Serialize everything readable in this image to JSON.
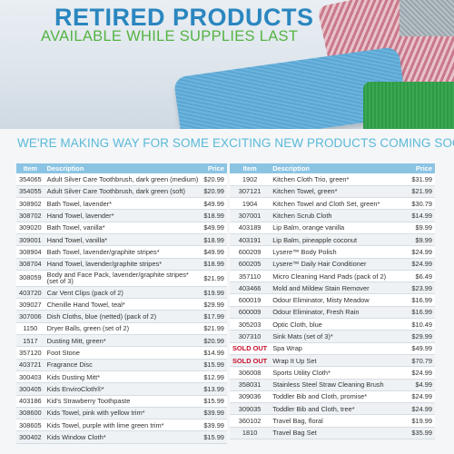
{
  "banner": {
    "title": "RETIRED PRODUCTS",
    "subtitle": "AVAILABLE WHILE SUPPLIES LAST"
  },
  "headline": "WE'RE MAKING WAY FOR SOME EXCITING NEW PRODUCTS COMING SOON!",
  "columns": {
    "item": "Item",
    "description": "Description",
    "price": "Price"
  },
  "left_products": [
    {
      "item": "354065",
      "description": "Adult Silver Care Toothbrush, dark green (medium)",
      "price": "$20.99"
    },
    {
      "item": "354055",
      "description": "Adult Silver Care Toothbrush, dark green (soft)",
      "price": "$20.99"
    },
    {
      "item": "308902",
      "description": "Bath Towel, lavender*",
      "price": "$49.99"
    },
    {
      "item": "308702",
      "description": "Hand Towel, lavender*",
      "price": "$18.99"
    },
    {
      "item": "309020",
      "description": "Bath Towel, vanilla*",
      "price": "$49.99"
    },
    {
      "item": "309001",
      "description": "Hand Towel, vanilla*",
      "price": "$18.99"
    },
    {
      "item": "308904",
      "description": "Bath Towel, lavender/graphite stripes*",
      "price": "$49.99"
    },
    {
      "item": "308704",
      "description": "Hand Towel, lavender/graphite stripes*",
      "price": "$18.99"
    },
    {
      "item": "308059",
      "description": "Body and Face Pack, lavender/graphite stripes* (set of 3)",
      "price": "$21.99"
    },
    {
      "item": "403720",
      "description": "Car Vent Clips (pack of 2)",
      "price": "$19.99"
    },
    {
      "item": "309027",
      "description": "Chenille Hand Towel, teal*",
      "price": "$29.99"
    },
    {
      "item": "307006",
      "description": "Dish Cloths, blue (netted) (pack of 2)",
      "price": "$17.99"
    },
    {
      "item": "1150",
      "description": "Dryer Balls, green (set of 2)",
      "price": "$21.99"
    },
    {
      "item": "1517",
      "description": "Dusting Mitt, green*",
      "price": "$20.99"
    },
    {
      "item": "357120",
      "description": "Foot Stone",
      "price": "$14.99"
    },
    {
      "item": "403721",
      "description": "Fragrance Disc",
      "price": "$15.99"
    },
    {
      "item": "300403",
      "description": "Kids Dusting Mitt*",
      "price": "$12.99"
    },
    {
      "item": "300405",
      "description": "Kids EnviroCloth®*",
      "price": "$13.99"
    },
    {
      "item": "403186",
      "description": "Kid's Strawberry Toothpaste",
      "price": "$15.99"
    },
    {
      "item": "308600",
      "description": "Kids Towel, pink with yellow trim*",
      "price": "$39.99"
    },
    {
      "item": "308605",
      "description": "Kids Towel, purple with lime green trim*",
      "price": "$39.99"
    },
    {
      "item": "300402",
      "description": "Kids Window Cloth*",
      "price": "$15.99"
    }
  ],
  "right_products": [
    {
      "item": "1902",
      "sold_out": "",
      "description": "Kitchen Cloth Trio, green*",
      "price": "$31.99"
    },
    {
      "item": "307121",
      "sold_out": "",
      "description": "Kitchen Towel, green*",
      "price": "$21.99"
    },
    {
      "item": "1904",
      "sold_out": "",
      "description": "Kitchen Towel and Cloth Set, green*",
      "price": "$30.79"
    },
    {
      "item": "307001",
      "sold_out": "",
      "description": "Kitchen Scrub Cloth",
      "price": "$14.99"
    },
    {
      "item": "403189",
      "sold_out": "",
      "description": "Lip Balm, orange vanilla",
      "price": "$9.99"
    },
    {
      "item": "403191",
      "sold_out": "",
      "description": "Lip Balm, pineapple coconut",
      "price": "$9.99"
    },
    {
      "item": "600209",
      "sold_out": "",
      "description": "Lysere™ Body Polish",
      "price": "$24.99"
    },
    {
      "item": "600205",
      "sold_out": "",
      "description": "Lysere™ Daily Hair Conditioner",
      "price": "$24.99"
    },
    {
      "item": "357110",
      "sold_out": "",
      "description": "Micro Cleaning Hand Pads (pack of 2)",
      "price": "$6.49"
    },
    {
      "item": "403466",
      "sold_out": "",
      "description": "Mold and Mildew Stain Remover",
      "price": "$23.99"
    },
    {
      "item": "600019",
      "sold_out": "",
      "description": "Odour Eliminator, Misty Meadow",
      "price": "$16.99"
    },
    {
      "item": "600009",
      "sold_out": "",
      "description": "Odour Eliminator, Fresh Rain",
      "price": "$16.99"
    },
    {
      "item": "305203",
      "sold_out": "",
      "description": "Optic Cloth, blue",
      "price": "$10.49"
    },
    {
      "item": "307310",
      "sold_out": "",
      "description": "Sink Mats (set of 3)*",
      "price": "$29.99"
    },
    {
      "item": "",
      "sold_out": "SOLD OUT",
      "description": "Spa Wrap",
      "price": "$49.99"
    },
    {
      "item": "",
      "sold_out": "SOLD OUT",
      "description": "Wrap It Up Set",
      "price": "$70.79"
    },
    {
      "item": "306008",
      "sold_out": "",
      "description": "Sports Utility Cloth*",
      "price": "$24.99"
    },
    {
      "item": "358031",
      "sold_out": "",
      "description": "Stainless Steel Straw Cleaning Brush",
      "price": "$4.99"
    },
    {
      "item": "309036",
      "sold_out": "",
      "description": "Toddler Bib and Cloth, promise*",
      "price": "$24.99"
    },
    {
      "item": "309035",
      "sold_out": "",
      "description": "Toddler Bib and Cloth, tree*",
      "price": "$24.99"
    },
    {
      "item": "360102",
      "sold_out": "",
      "description": "Travel Bag, floral",
      "price": "$19.99"
    },
    {
      "item": "1810",
      "sold_out": "",
      "description": "Travel Bag Set",
      "price": "$35.99"
    }
  ]
}
